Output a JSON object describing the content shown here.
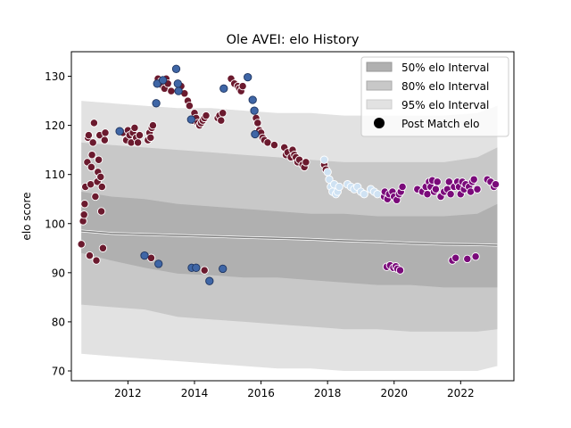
{
  "chart_data": {
    "type": "scatter",
    "title": "Ole AVEI: elo History",
    "xlabel": "",
    "ylabel": "elo score",
    "xlim": [
      2010.3,
      2023.6
    ],
    "ylim": [
      68,
      135
    ],
    "x_ticks": [
      2012,
      2014,
      2016,
      2018,
      2020,
      2022
    ],
    "y_ticks": [
      70,
      80,
      90,
      100,
      110,
      120,
      130
    ],
    "grid": false,
    "legend_position": "upper right",
    "legend": [
      {
        "label": "50% elo Interval",
        "kind": "band",
        "color": "#b0b0b0"
      },
      {
        "label": "80% elo Interval",
        "kind": "band",
        "color": "#c8c8c8"
      },
      {
        "label": "95% elo Interval",
        "kind": "band",
        "color": "#e2e2e2"
      },
      {
        "label": "Post Match elo",
        "kind": "marker",
        "color": "#000000"
      }
    ],
    "intervals": {
      "x": [
        2010.6,
        2011.5,
        2012.5,
        2013.5,
        2014.5,
        2015.5,
        2016.5,
        2017.5,
        2018.5,
        2019.5,
        2020.5,
        2021.5,
        2022.5,
        2023.1
      ],
      "median": [
        98.5,
        98.0,
        97.8,
        97.6,
        97.4,
        97.2,
        97.0,
        96.8,
        96.5,
        96.3,
        96.0,
        95.8,
        95.7,
        95.6
      ],
      "p50": {
        "lower": [
          94.0,
          92.5,
          91.0,
          89.8,
          89.5,
          89.0,
          89.0,
          88.5,
          88.0,
          87.5,
          87.5,
          87.0,
          87.0,
          87.0
        ],
        "upper": [
          106.5,
          105.5,
          105.0,
          104.0,
          103.5,
          103.0,
          102.5,
          102.0,
          102.0,
          101.5,
          101.5,
          101.5,
          102.0,
          104.0
        ]
      },
      "p80": {
        "lower": [
          83.5,
          83.0,
          82.5,
          81.0,
          80.5,
          80.0,
          79.5,
          79.0,
          78.5,
          78.5,
          78.0,
          78.0,
          78.0,
          78.5
        ],
        "upper": [
          116.5,
          116.0,
          115.5,
          115.0,
          114.5,
          114.0,
          113.5,
          113.0,
          112.5,
          112.5,
          112.5,
          112.5,
          113.5,
          115.5
        ]
      },
      "p95": {
        "lower": [
          73.5,
          73.0,
          72.5,
          72.0,
          71.5,
          71.0,
          70.5,
          70.5,
          70.0,
          70.0,
          70.0,
          70.0,
          70.0,
          71.0
        ],
        "upper": [
          125.0,
          124.5,
          124.0,
          123.5,
          123.5,
          123.0,
          122.5,
          122.5,
          122.0,
          122.0,
          122.0,
          122.0,
          122.5,
          124.0
        ]
      }
    },
    "series": [
      {
        "color": "#6b1a2e",
        "points": [
          [
            2010.6,
            95.8
          ],
          [
            2010.65,
            100.5
          ],
          [
            2010.68,
            101.8
          ],
          [
            2010.7,
            104.0
          ],
          [
            2010.72,
            107.5
          ],
          [
            2010.78,
            112.5
          ],
          [
            2010.8,
            117.5
          ],
          [
            2010.82,
            118.0
          ],
          [
            2010.85,
            93.5
          ],
          [
            2010.88,
            108.0
          ],
          [
            2010.9,
            111.5
          ],
          [
            2010.92,
            114.0
          ],
          [
            2010.95,
            116.5
          ],
          [
            2010.98,
            120.5
          ],
          [
            2011.02,
            105.5
          ],
          [
            2011.05,
            92.5
          ],
          [
            2011.08,
            108.5
          ],
          [
            2011.1,
            110.5
          ],
          [
            2011.12,
            113.0
          ],
          [
            2011.15,
            118.0
          ],
          [
            2011.18,
            109.5
          ],
          [
            2011.2,
            102.5
          ],
          [
            2011.22,
            107.5
          ],
          [
            2011.25,
            95.0
          ],
          [
            2011.3,
            117.0
          ],
          [
            2011.32,
            118.5
          ],
          [
            2011.85,
            118.5
          ],
          [
            2011.95,
            117.0
          ],
          [
            2012.0,
            119.0
          ],
          [
            2012.05,
            118.0
          ],
          [
            2012.1,
            116.5
          ],
          [
            2012.15,
            118.5
          ],
          [
            2012.2,
            119.5
          ],
          [
            2012.25,
            117.5
          ],
          [
            2012.3,
            116.5
          ],
          [
            2012.35,
            118.0
          ],
          [
            2012.6,
            117.0
          ],
          [
            2012.65,
            118.5
          ],
          [
            2012.68,
            117.5
          ],
          [
            2012.7,
            93.0
          ],
          [
            2012.72,
            119.5
          ],
          [
            2012.75,
            120.0
          ],
          [
            2012.9,
            129.5
          ],
          [
            2013.0,
            129.0
          ],
          [
            2013.05,
            128.0
          ],
          [
            2013.1,
            127.5
          ],
          [
            2013.15,
            129.5
          ],
          [
            2013.2,
            128.5
          ],
          [
            2013.3,
            127.0
          ],
          [
            2013.6,
            128.0
          ],
          [
            2013.7,
            126.5
          ],
          [
            2013.8,
            125.0
          ],
          [
            2013.85,
            124.0
          ],
          [
            2013.95,
            91.0
          ],
          [
            2013.95,
            121.0
          ],
          [
            2014.0,
            122.5
          ],
          [
            2014.05,
            121.5
          ],
          [
            2014.1,
            120.5
          ],
          [
            2014.15,
            120.0
          ],
          [
            2014.2,
            120.5
          ],
          [
            2014.25,
            121.0
          ],
          [
            2014.3,
            121.5
          ],
          [
            2014.35,
            122.0
          ],
          [
            2014.3,
            90.5
          ],
          [
            2014.7,
            121.5
          ],
          [
            2014.75,
            122.0
          ],
          [
            2014.8,
            121.0
          ],
          [
            2014.85,
            122.5
          ],
          [
            2015.1,
            129.5
          ],
          [
            2015.2,
            128.5
          ],
          [
            2015.3,
            128.0
          ],
          [
            2015.35,
            127.5
          ],
          [
            2015.4,
            127.0
          ],
          [
            2015.45,
            128.0
          ],
          [
            2015.85,
            121.5
          ],
          [
            2015.9,
            120.5
          ],
          [
            2015.95,
            119.0
          ],
          [
            2016.0,
            118.5
          ],
          [
            2016.05,
            117.5
          ],
          [
            2016.1,
            117.0
          ],
          [
            2016.2,
            116.5
          ],
          [
            2016.4,
            116.0
          ],
          [
            2016.7,
            115.5
          ],
          [
            2016.75,
            114.0
          ],
          [
            2016.8,
            114.5
          ],
          [
            2016.9,
            113.5
          ],
          [
            2016.95,
            115.0
          ],
          [
            2017.0,
            114.0
          ],
          [
            2017.05,
            113.5
          ],
          [
            2017.1,
            112.5
          ],
          [
            2017.15,
            113.0
          ],
          [
            2017.25,
            112.0
          ],
          [
            2017.3,
            111.5
          ],
          [
            2017.35,
            112.5
          ],
          [
            2017.9,
            112.0
          ],
          [
            2017.95,
            111.0
          ]
        ]
      },
      {
        "color": "#3f66a6",
        "points": [
          [
            2011.75,
            118.8
          ],
          [
            2012.5,
            93.5
          ],
          [
            2012.85,
            124.5
          ],
          [
            2012.88,
            128.5
          ],
          [
            2012.92,
            91.8
          ],
          [
            2013.05,
            129.2
          ],
          [
            2013.45,
            131.5
          ],
          [
            2013.5,
            128.5
          ],
          [
            2013.52,
            127.0
          ],
          [
            2013.9,
            121.2
          ],
          [
            2013.92,
            91.0
          ],
          [
            2014.05,
            91.0
          ],
          [
            2014.45,
            88.3
          ],
          [
            2014.85,
            90.8
          ],
          [
            2014.88,
            127.5
          ],
          [
            2015.6,
            129.8
          ],
          [
            2015.75,
            125.2
          ],
          [
            2015.8,
            123.0
          ],
          [
            2015.82,
            118.2
          ]
        ]
      },
      {
        "color": "#cfe2f3",
        "points": [
          [
            2017.9,
            113.0
          ],
          [
            2018.0,
            110.5
          ],
          [
            2018.05,
            109.0
          ],
          [
            2018.1,
            107.5
          ],
          [
            2018.15,
            106.5
          ],
          [
            2018.2,
            108.0
          ],
          [
            2018.25,
            106.0
          ],
          [
            2018.3,
            106.5
          ],
          [
            2018.35,
            107.5
          ],
          [
            2018.6,
            108.0
          ],
          [
            2018.7,
            107.5
          ],
          [
            2018.8,
            107.0
          ],
          [
            2018.9,
            107.5
          ],
          [
            2019.0,
            106.5
          ],
          [
            2019.1,
            106.0
          ],
          [
            2019.3,
            107.0
          ],
          [
            2019.4,
            106.5
          ],
          [
            2019.5,
            106.0
          ]
        ]
      },
      {
        "color": "#7a0a7a",
        "points": [
          [
            2019.7,
            105.5
          ],
          [
            2019.72,
            106.5
          ],
          [
            2019.78,
            91.2
          ],
          [
            2019.8,
            105.0
          ],
          [
            2019.85,
            106.0
          ],
          [
            2019.88,
            91.5
          ],
          [
            2019.95,
            106.5
          ],
          [
            2019.98,
            91.0
          ],
          [
            2020.0,
            105.5
          ],
          [
            2020.05,
            91.3
          ],
          [
            2020.08,
            104.8
          ],
          [
            2020.1,
            90.8
          ],
          [
            2020.15,
            106.0
          ],
          [
            2020.18,
            90.5
          ],
          [
            2020.2,
            106.5
          ],
          [
            2020.25,
            107.5
          ],
          [
            2020.7,
            107.0
          ],
          [
            2020.85,
            106.5
          ],
          [
            2020.95,
            107.5
          ],
          [
            2021.0,
            106.0
          ],
          [
            2021.05,
            108.5
          ],
          [
            2021.1,
            107.5
          ],
          [
            2021.15,
            108.8
          ],
          [
            2021.2,
            106.5
          ],
          [
            2021.25,
            107.0
          ],
          [
            2021.3,
            108.5
          ],
          [
            2021.4,
            105.5
          ],
          [
            2021.5,
            106.5
          ],
          [
            2021.6,
            107.0
          ],
          [
            2021.65,
            108.5
          ],
          [
            2021.7,
            106.0
          ],
          [
            2021.75,
            92.5
          ],
          [
            2021.8,
            107.5
          ],
          [
            2021.85,
            93.0
          ],
          [
            2021.9,
            108.5
          ],
          [
            2021.95,
            107.5
          ],
          [
            2022.0,
            106.0
          ],
          [
            2022.05,
            108.5
          ],
          [
            2022.1,
            107.0
          ],
          [
            2022.15,
            108.0
          ],
          [
            2022.2,
            92.8
          ],
          [
            2022.25,
            107.5
          ],
          [
            2022.3,
            106.5
          ],
          [
            2022.35,
            108.5
          ],
          [
            2022.4,
            109.0
          ],
          [
            2022.45,
            93.3
          ],
          [
            2022.5,
            107.0
          ],
          [
            2022.8,
            109.0
          ],
          [
            2022.9,
            108.5
          ],
          [
            2023.0,
            107.5
          ],
          [
            2023.05,
            108.0
          ]
        ]
      }
    ]
  }
}
